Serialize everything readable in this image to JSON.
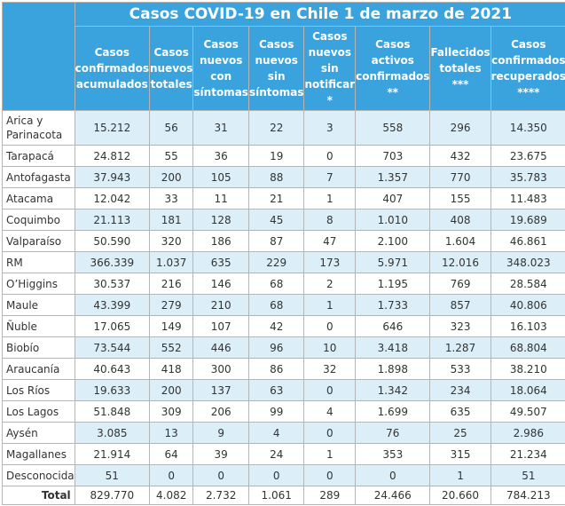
{
  "title": "Casos COVID-19 en Chile 1 de marzo de 2021",
  "columns": [
    [
      "Casos",
      "confirmados",
      "acumulados"
    ],
    [
      "Casos",
      "nuevos",
      "totales"
    ],
    [
      "Casos",
      "nuevos",
      "con",
      "síntomas"
    ],
    [
      "Casos",
      "nuevos",
      "sin",
      "síntomas"
    ],
    [
      "Casos",
      "nuevos",
      "sin",
      "notificar",
      "*"
    ],
    [
      "Casos",
      "activos",
      "confirmados",
      "**"
    ],
    [
      "Fallecidos",
      "totales",
      "***"
    ],
    [
      "Casos",
      "confirmados",
      "recuperados",
      "****"
    ]
  ],
  "rows": [
    {
      "region": "Arica y Parinacota",
      "values": [
        "15.212",
        "56",
        "31",
        "22",
        "3",
        "558",
        "296",
        "14.350"
      ]
    },
    {
      "region": "Tarapacá",
      "values": [
        "24.812",
        "55",
        "36",
        "19",
        "0",
        "703",
        "432",
        "23.675"
      ]
    },
    {
      "region": "Antofagasta",
      "values": [
        "37.943",
        "200",
        "105",
        "88",
        "7",
        "1.357",
        "770",
        "35.783"
      ]
    },
    {
      "region": "Atacama",
      "values": [
        "12.042",
        "33",
        "11",
        "21",
        "1",
        "407",
        "155",
        "11.483"
      ]
    },
    {
      "region": "Coquimbo",
      "values": [
        "21.113",
        "181",
        "128",
        "45",
        "8",
        "1.010",
        "408",
        "19.689"
      ]
    },
    {
      "region": "Valparaíso",
      "values": [
        "50.590",
        "320",
        "186",
        "87",
        "47",
        "2.100",
        "1.604",
        "46.861"
      ]
    },
    {
      "region": "RM",
      "values": [
        "366.339",
        "1.037",
        "635",
        "229",
        "173",
        "5.971",
        "12.016",
        "348.023"
      ]
    },
    {
      "region": "O’Higgins",
      "values": [
        "30.537",
        "216",
        "146",
        "68",
        "2",
        "1.195",
        "769",
        "28.584"
      ]
    },
    {
      "region": "Maule",
      "values": [
        "43.399",
        "279",
        "210",
        "68",
        "1",
        "1.733",
        "857",
        "40.806"
      ]
    },
    {
      "region": "Ñuble",
      "values": [
        "17.065",
        "149",
        "107",
        "42",
        "0",
        "646",
        "323",
        "16.103"
      ]
    },
    {
      "region": "Biobío",
      "values": [
        "73.544",
        "552",
        "446",
        "96",
        "10",
        "3.418",
        "1.287",
        "68.804"
      ]
    },
    {
      "region": "Araucanía",
      "values": [
        "40.643",
        "418",
        "300",
        "86",
        "32",
        "1.898",
        "533",
        "38.210"
      ]
    },
    {
      "region": "Los Ríos",
      "values": [
        "19.633",
        "200",
        "137",
        "63",
        "0",
        "1.342",
        "234",
        "18.064"
      ]
    },
    {
      "region": "Los Lagos",
      "values": [
        "51.848",
        "309",
        "206",
        "99",
        "4",
        "1.699",
        "635",
        "49.507"
      ]
    },
    {
      "region": "Aysén",
      "values": [
        "3.085",
        "13",
        "9",
        "4",
        "0",
        "76",
        "25",
        "2.986"
      ]
    },
    {
      "region": "Magallanes",
      "values": [
        "21.914",
        "64",
        "39",
        "24",
        "1",
        "353",
        "315",
        "21.234"
      ]
    },
    {
      "region": "Desconocida",
      "values": [
        "51",
        "0",
        "0",
        "0",
        "0",
        "0",
        "1",
        "51"
      ]
    }
  ],
  "total": {
    "label": "Total",
    "values": [
      "829.770",
      "4.082",
      "2.732",
      "1.061",
      "289",
      "24.466",
      "20.660",
      "784.213"
    ]
  },
  "colors": {
    "header_bg": "#3aa3dd",
    "row_shade": "#dceff9",
    "border": "#b5b5b5"
  }
}
